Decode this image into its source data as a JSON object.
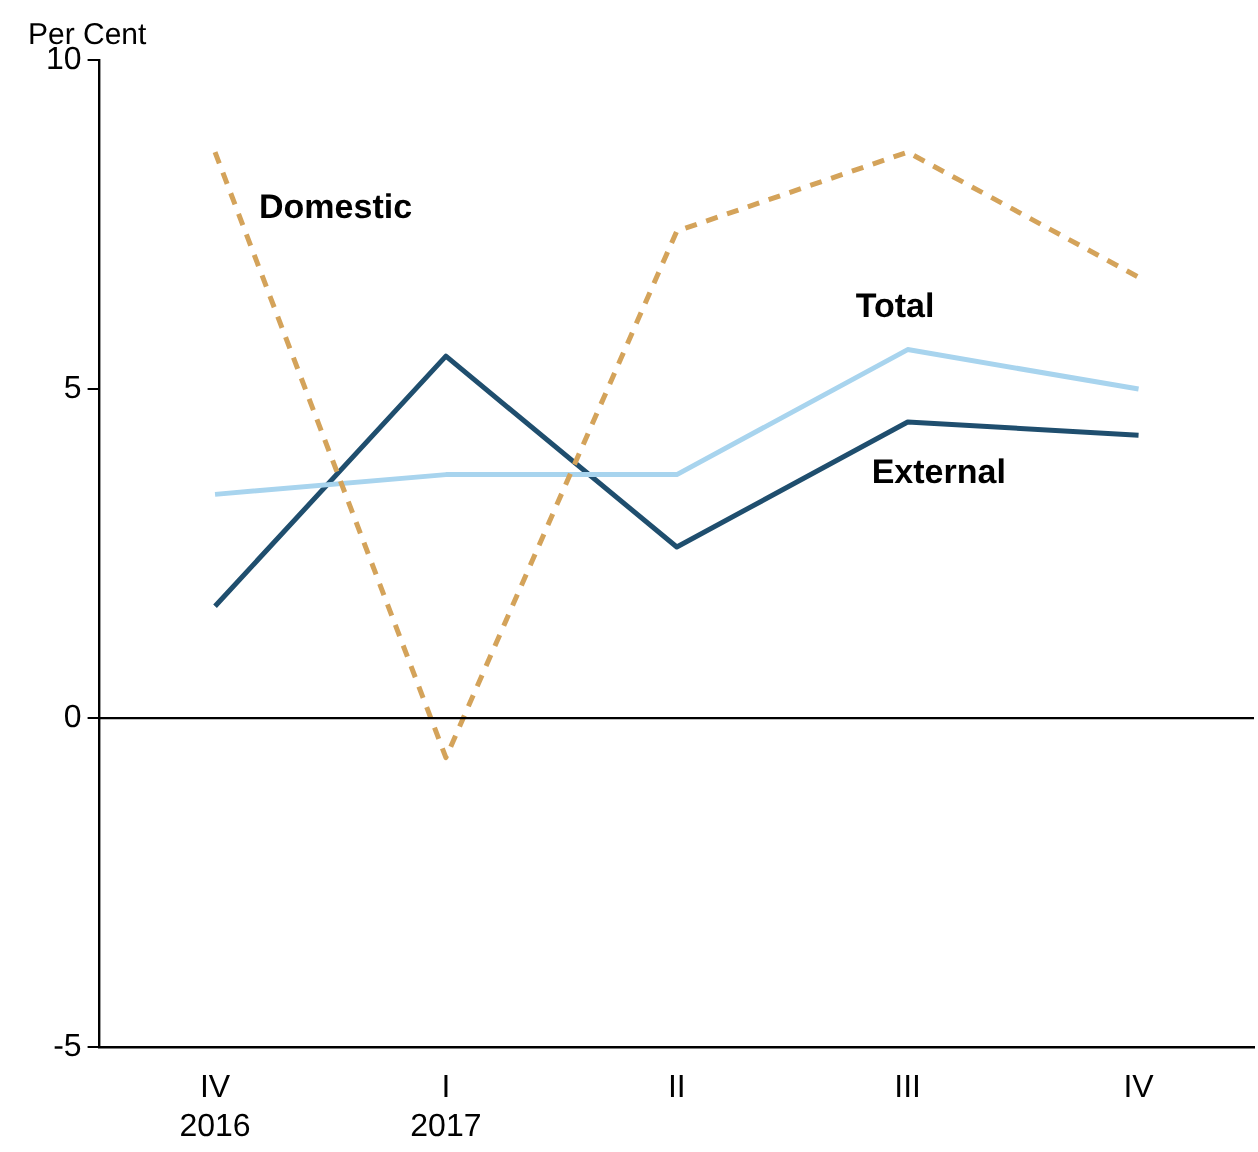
{
  "chart_data": {
    "type": "line",
    "ylabel": "Per Cent",
    "categories": [
      "IV\n2016",
      "I\n2017",
      "II",
      "III",
      "IV"
    ],
    "series": [
      {
        "name": "Domestic",
        "color": "#d4a35a",
        "line_style": "dashed",
        "values": [
          8.6,
          -0.6,
          7.4,
          8.6,
          6.7
        ]
      },
      {
        "name": "Total",
        "color": "#a8d4ee",
        "values": [
          3.4,
          3.7,
          3.7,
          5.6,
          5.0
        ]
      },
      {
        "name": "External",
        "color": "#1f4e6e",
        "values": [
          1.7,
          5.5,
          2.6,
          4.5,
          4.3
        ]
      }
    ],
    "ylim": [
      -5,
      10
    ],
    "yticks": [
      -5,
      0,
      5,
      10
    ],
    "grid": false,
    "legend": false,
    "marker": "none",
    "ref_lines": [
      {
        "axis": "y",
        "value": 0,
        "color": "#000000"
      }
    ]
  }
}
